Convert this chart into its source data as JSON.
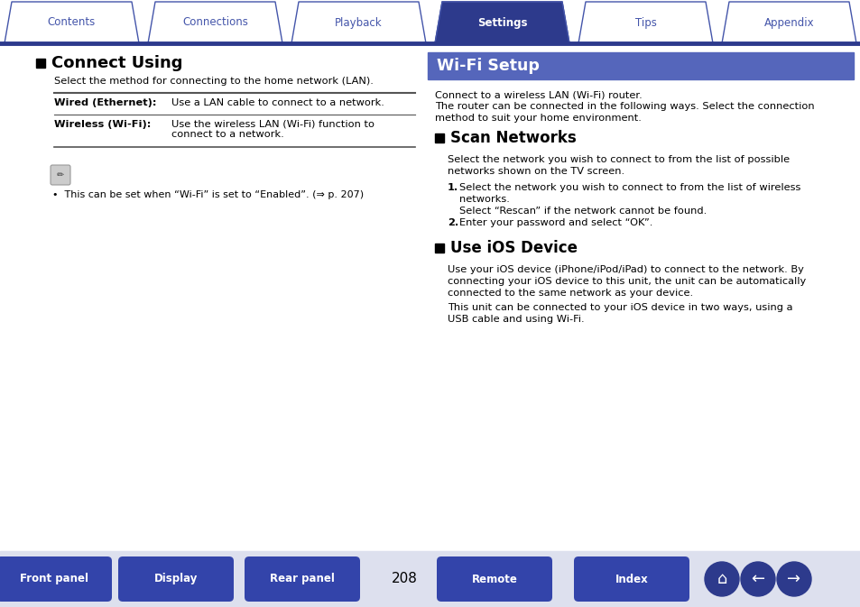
{
  "bg_color": "#ffffff",
  "tab_color_active": "#2d3a8c",
  "tab_color_inactive": "#ffffff",
  "tab_border_color": "#4455aa",
  "tab_labels": [
    "Contents",
    "Connections",
    "Playback",
    "Settings",
    "Tips",
    "Appendix"
  ],
  "tab_active_index": 3,
  "header_line_color": "#2d3a8c",
  "wifi_header_bg": "#5566bb",
  "wifi_header_text": "Wi-Fi Setup",
  "wifi_header_text_color": "#ffffff",
  "left_section_title": "Connect Using",
  "left_intro": "Select the method for connecting to the home network (LAN).",
  "table_rows": [
    [
      "Wired (Ethernet):",
      "Use a LAN cable to connect to a network."
    ],
    [
      "Wireless (Wi-Fi):",
      "Use the wireless LAN (Wi-Fi) function to\nconnect to a network."
    ]
  ],
  "note_text": "•  This can be set when “Wi-Fi” is set to “Enabled”. (⇒ p. 207)",
  "wifi_intro_line1": "Connect to a wireless LAN (Wi-Fi) router.",
  "wifi_intro_line2": "The router can be connected in the following ways. Select the connection",
  "wifi_intro_line3": "method to suit your home environment.",
  "scan_title": "Scan Networks",
  "scan_intro_line1": "Select the network you wish to connect to from the list of possible",
  "scan_intro_line2": "networks shown on the TV screen.",
  "scan_step1_line1": "Select the network you wish to connect to from the list of wireless",
  "scan_step1_line2": "networks.",
  "scan_step1_line3": "Select “Rescan” if the network cannot be found.",
  "scan_step2": "Enter your password and select “OK”.",
  "ios_title": "Use iOS Device",
  "ios_line1": "Use your iOS device (iPhone/iPod/iPad) to connect to the network. By",
  "ios_line2": "connecting your iOS device to this unit, the unit can be automatically",
  "ios_line3": "connected to the same network as your device.",
  "ios_line4": "This unit can be connected to your iOS device in two ways, using a",
  "ios_line5": "USB cable and using Wi-Fi.",
  "bottom_buttons": [
    "Front panel",
    "Display",
    "Rear panel",
    "Remote",
    "Index"
  ],
  "page_number": "208",
  "button_color": "#3344aa",
  "button_text_color": "#ffffff",
  "icon_circle_color": "#2d3a8c",
  "text_color": "#000000",
  "title_color": "#000000",
  "section_marker_color": "#000000",
  "bottom_bg": "#dde0ee"
}
